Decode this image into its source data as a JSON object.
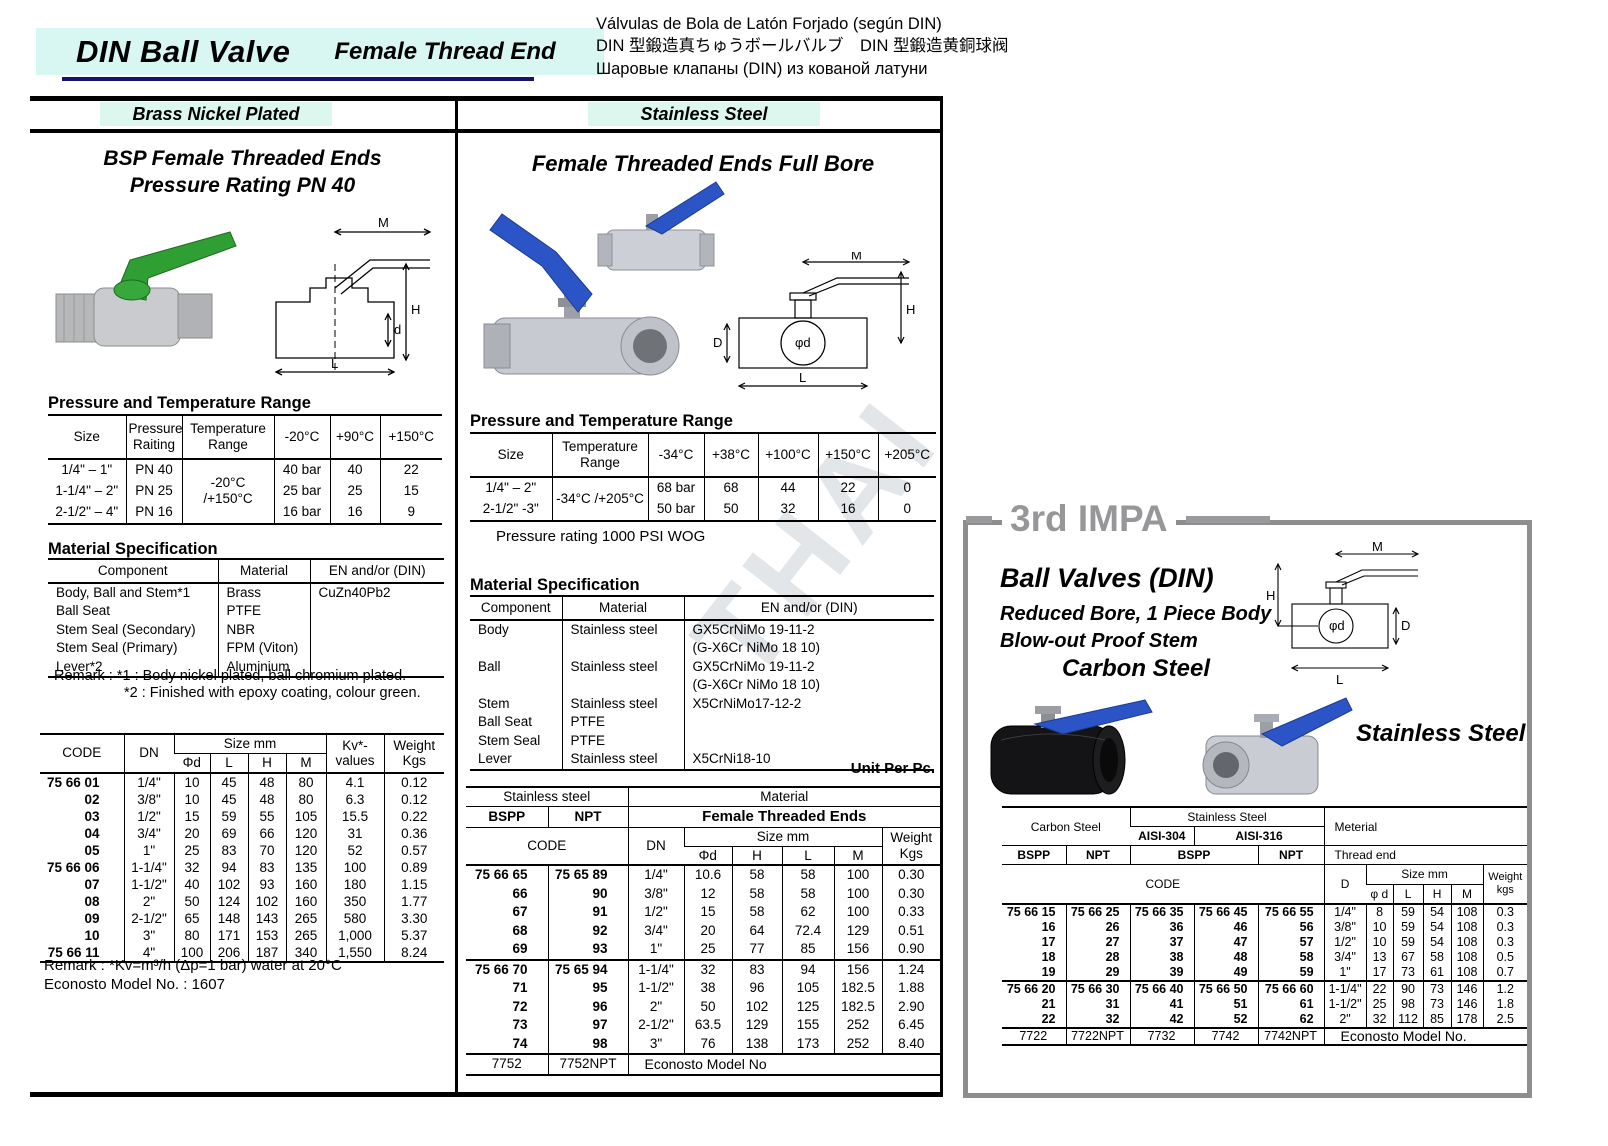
{
  "header": {
    "title": "DIN Ball Valve",
    "subtitle": "Female Thread End",
    "translations": [
      "Válvulas de Bola de Latón Forjado (según DIN)",
      "DIN 型鍛造真ちゅうボールバルブ　DIN 型鍛造黄銅球阀",
      "Шаровые клапаны (DIN) из кованой латуни"
    ]
  },
  "watermark": "THAI",
  "left": {
    "section_label": "Brass Nickel Plated",
    "product_title_1": "BSP Female Threaded Ends",
    "product_title_2": "Pressure Rating PN 40",
    "diagram_labels": {
      "m": "M",
      "h": "H",
      "d": "d",
      "l": "L"
    },
    "pt": {
      "heading": "Pressure and Temperature Range",
      "headers": [
        "Size",
        "Pressure Raiting",
        "Temperature Range",
        "-20°C",
        "+90°C",
        "+150°C"
      ],
      "temp_range": "-20°C /+150°C",
      "rows": [
        [
          "1/4\" – 1\"",
          "PN 40",
          "40 bar",
          "40",
          "22"
        ],
        [
          "1-1/4\" – 2\"",
          "PN 25",
          "25 bar",
          "25",
          "15"
        ],
        [
          "2-1/2\" – 4\"",
          "PN 16",
          "16 bar",
          "16",
          "9"
        ]
      ]
    },
    "ms": {
      "heading": "Material Specification",
      "headers": [
        "Component",
        "Material",
        "EN and/or (DIN)"
      ],
      "rows": [
        [
          "Body, Ball and Stem*1",
          "Brass",
          "CuZn40Pb2"
        ],
        [
          "Ball Seat",
          "PTFE",
          ""
        ],
        [
          "Stem Seal (Secondary)",
          "NBR",
          ""
        ],
        [
          "Stem Seal (Primary)",
          "FPM (Viton)",
          ""
        ],
        [
          "Lever*2",
          "Aluminium",
          ""
        ]
      ],
      "remark_1": "Remark :  *1 : Body nickel plated, ball chromium plated.",
      "remark_2": "*2 : Finished with epoxy coating, colour green."
    },
    "codes": {
      "col_code": "CODE",
      "col_dn": "DN",
      "col_size": "Size mm",
      "col_phid": "Φd",
      "col_l": "L",
      "col_h": "H",
      "col_m": "M",
      "col_kv": "Kv*-\nvalues",
      "col_weight": "Weight\nKgs",
      "group1": [
        [
          "75 66 01",
          "1/4\"",
          "10",
          "45",
          "48",
          "80",
          "4.1",
          "0.12"
        ],
        [
          "02",
          "3/8\"",
          "10",
          "45",
          "48",
          "80",
          "6.3",
          "0.12"
        ],
        [
          "03",
          "1/2\"",
          "15",
          "59",
          "55",
          "105",
          "15.5",
          "0.22"
        ],
        [
          "04",
          "3/4\"",
          "20",
          "69",
          "66",
          "120",
          "31",
          "0.36"
        ],
        [
          "05",
          "1\"",
          "25",
          "83",
          "70",
          "120",
          "52",
          "0.57"
        ]
      ],
      "group2": [
        [
          "75 66 06",
          "1-1/4\"",
          "32",
          "94",
          "83",
          "135",
          "100",
          "0.89"
        ],
        [
          "07",
          "1-1/2\"",
          "40",
          "102",
          "93",
          "160",
          "180",
          "1.15"
        ],
        [
          "08",
          "2\"",
          "50",
          "124",
          "102",
          "160",
          "350",
          "1.77"
        ],
        [
          "09",
          "2-1/2\"",
          "65",
          "148",
          "143",
          "265",
          "580",
          "3.30"
        ],
        [
          "10",
          "3\"",
          "80",
          "171",
          "153",
          "265",
          "1,000",
          "5.37"
        ]
      ],
      "group3": [
        [
          "75 66 11",
          "4\"",
          "100",
          "206",
          "187",
          "340",
          "1,550",
          "8.24"
        ]
      ],
      "remark": "Remark : *Kv=m³/h (Δp=1 bar) water at 20°C",
      "econosto": "Econosto Model No. : 1607"
    }
  },
  "middle": {
    "section_label": "Stainless Steel",
    "product_title": "Female Threaded Ends Full Bore",
    "diagram_labels": {
      "m": "M",
      "h": "H",
      "dcap": "D",
      "phid": "φd",
      "l": "L"
    },
    "pt": {
      "heading": "Pressure and Temperature Range",
      "headers": [
        "Size",
        "Temperature Range",
        "-34°C",
        "+38°C",
        "+100°C",
        "+150°C",
        "+205°C"
      ],
      "temp_range": "-34°C /+205°C",
      "rows": [
        [
          "1/4\" – 2\"",
          "68 bar",
          "68",
          "44",
          "22",
          "0"
        ],
        [
          "2-1/2\" -3\"",
          "50 bar",
          "50",
          "32",
          "16",
          "0"
        ]
      ],
      "note": "Pressure rating 1000 PSI WOG"
    },
    "ms": {
      "heading": "Material Specification",
      "headers": [
        "Component",
        "Material",
        "EN and/or (DIN)"
      ],
      "rows": [
        [
          "Body",
          "Stainless steel",
          "GX5CrNiMo 19-11-2"
        ],
        [
          "",
          "",
          "(G-X6Cr NiMo 18 10)"
        ],
        [
          "Ball",
          "Stainless steel",
          "GX5CrNiMo 19-11-2"
        ],
        [
          "",
          "",
          "(G-X6Cr NiMo 18 10)"
        ],
        [
          "Stem",
          "Stainless steel",
          "X5CrNiMo17-12-2"
        ],
        [
          "Ball Seat",
          "PTFE",
          ""
        ],
        [
          "Stem Seal",
          "PTFE",
          ""
        ],
        [
          "Lever",
          "Stainless steel",
          "X5CrNi18-10"
        ]
      ]
    },
    "unit_note": "Unit Per Pc.",
    "codes": {
      "hdr_ss": "Stainless steel",
      "hdr_material": "Material",
      "hdr_bspp": "BSPP",
      "hdr_npt": "NPT",
      "hdr_fte": "Female Threaded Ends",
      "hdr_code": "CODE",
      "hdr_dn": "DN",
      "hdr_size": "Size mm",
      "col_phid": "Φd",
      "col_h": "H",
      "col_l": "L",
      "col_m": "M",
      "hdr_weight": "Weight\nKgs",
      "group1": [
        [
          "75 66 65",
          "75 65 89",
          "1/4\"",
          "10.6",
          "58",
          "58",
          "100",
          "0.30"
        ],
        [
          "66",
          "90",
          "3/8\"",
          "12",
          "58",
          "58",
          "100",
          "0.30"
        ],
        [
          "67",
          "91",
          "1/2\"",
          "15",
          "58",
          "62",
          "100",
          "0.33"
        ],
        [
          "68",
          "92",
          "3/4\"",
          "20",
          "64",
          "72.4",
          "129",
          "0.51"
        ],
        [
          "69",
          "93",
          "1\"",
          "25",
          "77",
          "85",
          "156",
          "0.90"
        ]
      ],
      "group2": [
        [
          "75 66 70",
          "75 65 94",
          "1-1/4\"",
          "32",
          "83",
          "94",
          "156",
          "1.24"
        ],
        [
          "71",
          "95",
          "1-1/2\"",
          "38",
          "96",
          "105",
          "182.5",
          "1.88"
        ],
        [
          "72",
          "96",
          "2\"",
          "50",
          "102",
          "125",
          "182.5",
          "2.90"
        ],
        [
          "73",
          "97",
          "2-1/2\"",
          "63.5",
          "129",
          "155",
          "252",
          "6.45"
        ],
        [
          "74",
          "98",
          "3\"",
          "76",
          "138",
          "173",
          "252",
          "8.40"
        ]
      ],
      "econosto": [
        "7752",
        "7752NPT",
        "Econosto Model No"
      ]
    }
  },
  "right": {
    "impa_title": "3rd IMPA",
    "product_title": "Ball Valves (DIN)",
    "feature_1": "Reduced Bore, 1 Piece Body",
    "feature_2": "Blow-out Proof Stem",
    "carbon_label": "Carbon Steel",
    "stainless_label": "Stainless Steel",
    "diagram_labels": {
      "m": "M",
      "h": "H",
      "dcap": "D",
      "phid": "φd",
      "l": "L"
    },
    "table": {
      "hdr_carbon": "Carbon Steel",
      "hdr_ss": "Stainless Steel",
      "hdr_304": "AISI-304",
      "hdr_316": "AISI-316",
      "hdr_bspp": "BSPP",
      "hdr_npt": "NPT",
      "hdr_bspp2": "BSPP",
      "hdr_npt2": "NPT",
      "hdr_meterial": "Meterial",
      "hdr_thread": "Thread end",
      "hdr_code": "CODE",
      "hdr_d": "D",
      "hdr_size": "Size mm",
      "col_phid": "φ d",
      "col_l": "L",
      "col_h": "H",
      "col_m": "M",
      "hdr_weight": "Weight\nkgs",
      "group1": [
        [
          "75 66 15",
          "75 66 25",
          "75 66 35",
          "75 66 45",
          "75 66 55",
          "1/4\"",
          "8",
          "59",
          "54",
          "108",
          "0.3"
        ],
        [
          "16",
          "26",
          "36",
          "46",
          "56",
          "3/8\"",
          "10",
          "59",
          "54",
          "108",
          "0.3"
        ],
        [
          "17",
          "27",
          "37",
          "47",
          "57",
          "1/2\"",
          "10",
          "59",
          "54",
          "108",
          "0.3"
        ],
        [
          "18",
          "28",
          "38",
          "48",
          "58",
          "3/4\"",
          "13",
          "67",
          "58",
          "108",
          "0.5"
        ],
        [
          "19",
          "29",
          "39",
          "49",
          "59",
          "1\"",
          "17",
          "73",
          "61",
          "108",
          "0.7"
        ]
      ],
      "group2": [
        [
          "75 66 20",
          "75 66 30",
          "75 66 40",
          "75 66 50",
          "75 66 60",
          "1-1/4\"",
          "22",
          "90",
          "73",
          "146",
          "1.2"
        ],
        [
          "21",
          "31",
          "41",
          "51",
          "61",
          "1-1/2\"",
          "25",
          "98",
          "73",
          "146",
          "1.8"
        ],
        [
          "22",
          "32",
          "42",
          "52",
          "62",
          "2\"",
          "32",
          "112",
          "85",
          "178",
          "2.5"
        ]
      ],
      "econosto": [
        "7722",
        "7722NPT",
        "7732",
        "7742",
        "7742NPT",
        "Econosto Model No."
      ]
    }
  }
}
